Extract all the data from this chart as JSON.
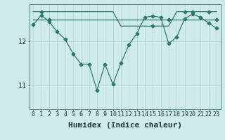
{
  "x": [
    0,
    1,
    2,
    3,
    4,
    5,
    6,
    7,
    8,
    9,
    10,
    11,
    12,
    13,
    14,
    15,
    16,
    17,
    18,
    19,
    20,
    21,
    22,
    23
  ],
  "y_main": [
    12.38,
    12.6,
    12.45,
    12.22,
    12.05,
    11.72,
    11.48,
    11.48,
    10.88,
    11.48,
    11.02,
    11.5,
    11.92,
    12.18,
    12.55,
    12.58,
    12.55,
    11.95,
    12.1,
    12.52,
    12.62,
    12.55,
    12.42,
    12.3
  ],
  "y_top": [
    12.68,
    12.68,
    12.68,
    12.68,
    12.68,
    12.68,
    12.68,
    12.68,
    12.68,
    12.68,
    12.68,
    12.35,
    12.35,
    12.35,
    12.35,
    12.35,
    12.35,
    12.35,
    12.68,
    12.68,
    12.68,
    12.68,
    12.68,
    12.68
  ],
  "y_mid": [
    12.5,
    12.5,
    12.5,
    12.5,
    12.5,
    12.5,
    12.5,
    12.5,
    12.5,
    12.5,
    12.5,
    12.5,
    12.5,
    12.5,
    12.5,
    12.5,
    12.5,
    12.5,
    12.5,
    12.5,
    12.5,
    12.5,
    12.5,
    12.5
  ],
  "line_color": "#2d7a6a",
  "bg_color": "#ceeaea",
  "grid_color_major": "#b8d5d5",
  "grid_color_minor": "#d0e8e8",
  "xlabel": "Humidex (Indice chaleur)",
  "xlabel_fontsize": 8,
  "tick_fontsize": 6,
  "ytick_labels": [
    "11",
    "12"
  ],
  "ytick_values": [
    11,
    12
  ],
  "ylim": [
    10.45,
    12.85
  ],
  "xlim": [
    -0.5,
    23.5
  ],
  "figsize": [
    3.2,
    2.0
  ],
  "dpi": 100
}
